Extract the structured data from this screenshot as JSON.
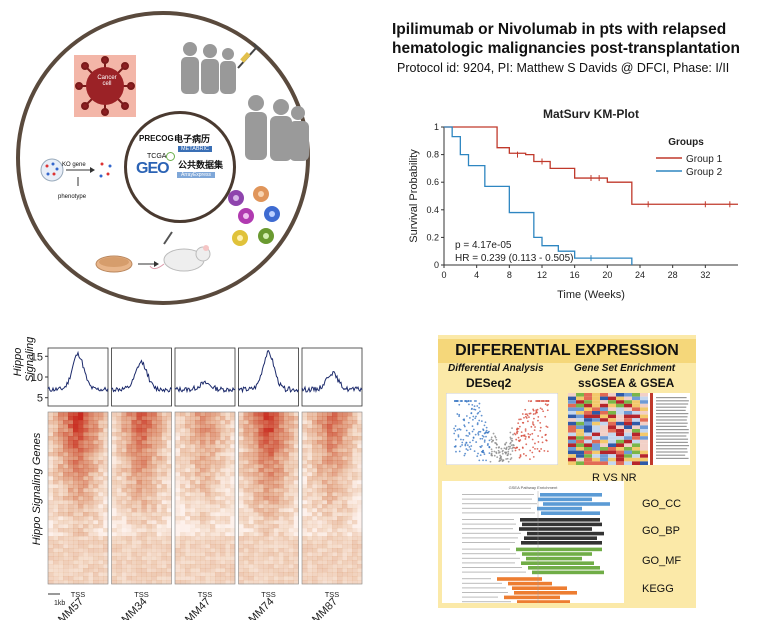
{
  "header": {
    "title_line1": "Ipilimumab or Nivolumab in pts with relapsed",
    "title_line2": "hematologic malignancies post-transplantation",
    "protocol": "Protocol id: 9204, PI: Matthew S Davids @ DFCI, Phase: I/II"
  },
  "circle": {
    "cancer_cell": "Cancer\ncell",
    "ko_gene": "KO gene",
    "phenotype": "phenotype",
    "precog": "PRECOG",
    "emr": "电子病历",
    "metabric": "METABRIC",
    "tcga": "TCGA",
    "geo": "GEO",
    "public_data": "公共数据集",
    "arrayexpress": "ArrayExpress"
  },
  "km": {
    "title": "MatSurv KM-Plot",
    "ylabel": "Survival Probability",
    "xlabel": "Time (Weeks)",
    "legend_title": "Groups",
    "legend": [
      "Group 1",
      "Group 2"
    ],
    "pvalue": "p = 4.17e-05",
    "hr": "HR = 0.239 (0.113 - 0.505)",
    "colors": {
      "g1": "#c0392b",
      "g2": "#2e86c1"
    }
  },
  "heat": {
    "ylabel_top": "Hippo\nSignaling",
    "ylabel_bottom": "Hippo Signaling Genes",
    "yticks": [
      "15",
      "10",
      "5"
    ],
    "tss": "TSS",
    "scale": "1kb",
    "samples": [
      "MM57",
      "MM34",
      "MM47",
      "MM74",
      "MM87"
    ]
  },
  "de": {
    "header": "DIFFERENTIAL EXPRESSION",
    "left_sub": "Differential Analysis",
    "left_title": "DESeq2",
    "right_sub": "Gene Set Enrichment",
    "right_title": "ssGSEA & GSEA",
    "rvsnr": "R VS NR",
    "bar_title": "GSEA Pathway Enrichment",
    "categories": [
      "GO_CC",
      "GO_BP",
      "GO_MF",
      "KEGG"
    ]
  },
  "chart_data": {
    "type": "line",
    "title": "MatSurv KM-Plot",
    "xlabel": "Time (Weeks)",
    "ylabel": "Survival Probability",
    "xlim": [
      0,
      36
    ],
    "ylim": [
      0,
      1
    ],
    "xticks": [
      0,
      4,
      8,
      12,
      16,
      20,
      24,
      28,
      32
    ],
    "yticks": [
      0,
      0.2,
      0.4,
      0.6,
      0.8,
      1
    ],
    "series": [
      {
        "name": "Group 1",
        "x": [
          0,
          6,
          6.5,
          8,
          10,
          11,
          13,
          16,
          20,
          23,
          36
        ],
        "y": [
          1,
          1,
          0.85,
          0.81,
          0.8,
          0.75,
          0.7,
          0.63,
          0.6,
          0.44,
          0.44
        ]
      },
      {
        "name": "Group 2",
        "x": [
          0,
          1,
          2,
          3,
          5,
          8,
          11,
          12,
          14,
          16,
          22,
          23
        ],
        "y": [
          1,
          0.93,
          0.8,
          0.72,
          0.57,
          0.38,
          0.2,
          0.14,
          0.1,
          0.05,
          0.05,
          0
        ]
      }
    ]
  }
}
